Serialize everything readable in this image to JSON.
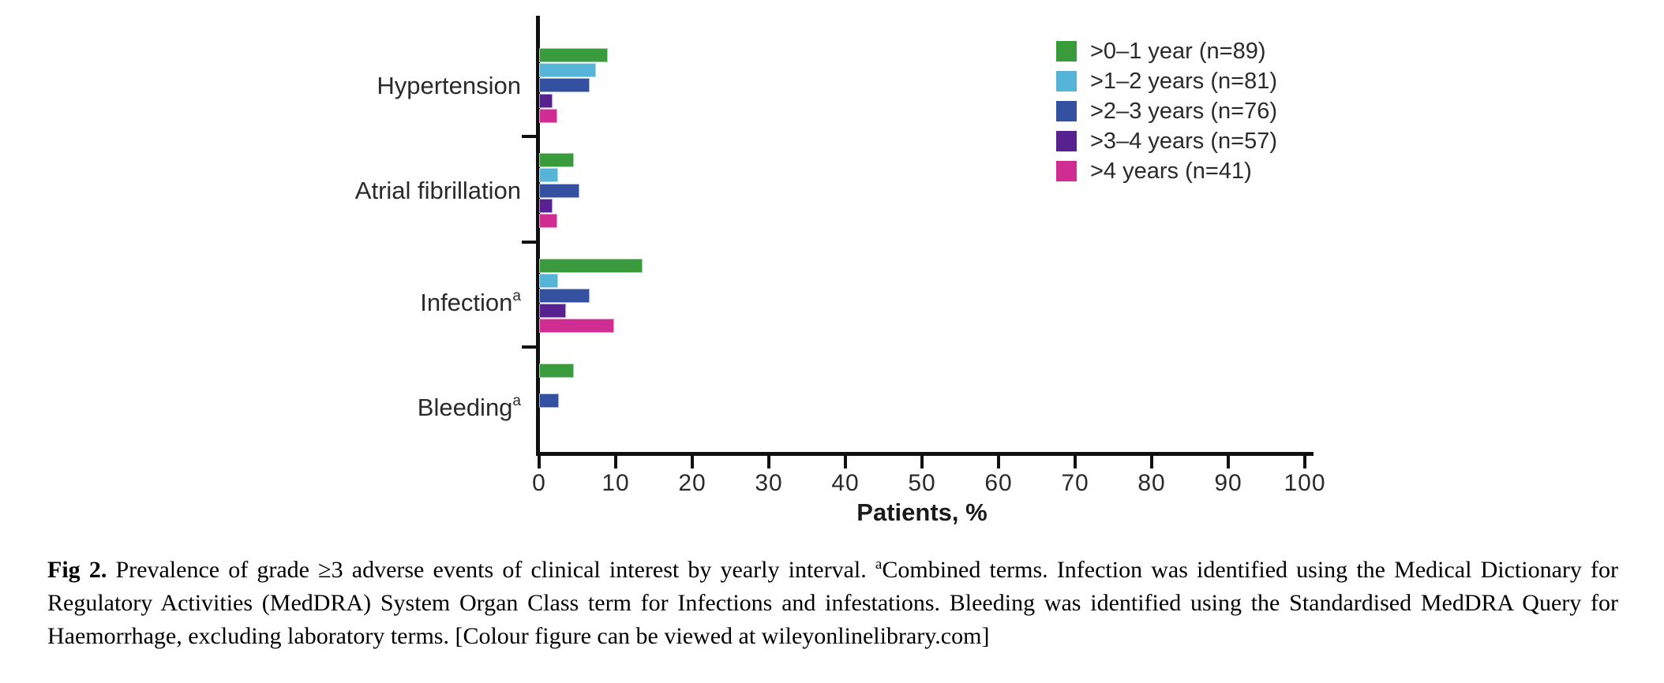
{
  "chart_data": {
    "type": "bar",
    "orientation": "horizontal",
    "title": "",
    "xlabel": "Patients, %",
    "ylabel": "",
    "xlim": [
      0,
      100
    ],
    "xticks": [
      0,
      10,
      20,
      30,
      40,
      50,
      60,
      70,
      80,
      90,
      100
    ],
    "grid": false,
    "legend_position": "top-right",
    "axis_color": "#111111",
    "categories": [
      {
        "label": "Hypertension",
        "sup": ""
      },
      {
        "label": "Atrial fibrillation",
        "sup": ""
      },
      {
        "label": "Infection",
        "sup": "a"
      },
      {
        "label": "Bleeding",
        "sup": "a"
      }
    ],
    "series": [
      {
        "name": ">0–1 year (n=89)",
        "color": "#3a9b3d",
        "values": [
          9.0,
          4.5,
          13.5,
          4.5
        ]
      },
      {
        "name": ">1–2 years (n=81)",
        "color": "#55b4d8",
        "values": [
          7.4,
          2.5,
          2.5,
          0
        ]
      },
      {
        "name": ">2–3 years (n=76)",
        "color": "#3450a0",
        "values": [
          6.6,
          5.3,
          6.6,
          2.6
        ]
      },
      {
        "name": ">3–4 years (n=57)",
        "color": "#572290",
        "values": [
          1.8,
          1.8,
          3.5,
          0
        ]
      },
      {
        "name": ">4 years (n=41)",
        "color": "#d02d93",
        "values": [
          2.4,
          2.4,
          9.8,
          0
        ]
      }
    ]
  },
  "caption": {
    "label": "Fig 2.",
    "segments": [
      {
        "text": "Prevalence of grade ≥3 adverse events of clinical interest by yearly interval. ",
        "sup": false
      },
      {
        "text": "a",
        "sup": true
      },
      {
        "text": "Combined terms. Infection was identified using the Medical Dictionary for Regulatory Activities (MedDRA) System Organ Class term for Infections and infestations. Bleeding was identified using the Standardised MedDRA Query for Haemorrhage, excluding laboratory terms. [Colour figure can be viewed at wileyonlinelibrary.com]",
        "sup": false
      }
    ]
  }
}
